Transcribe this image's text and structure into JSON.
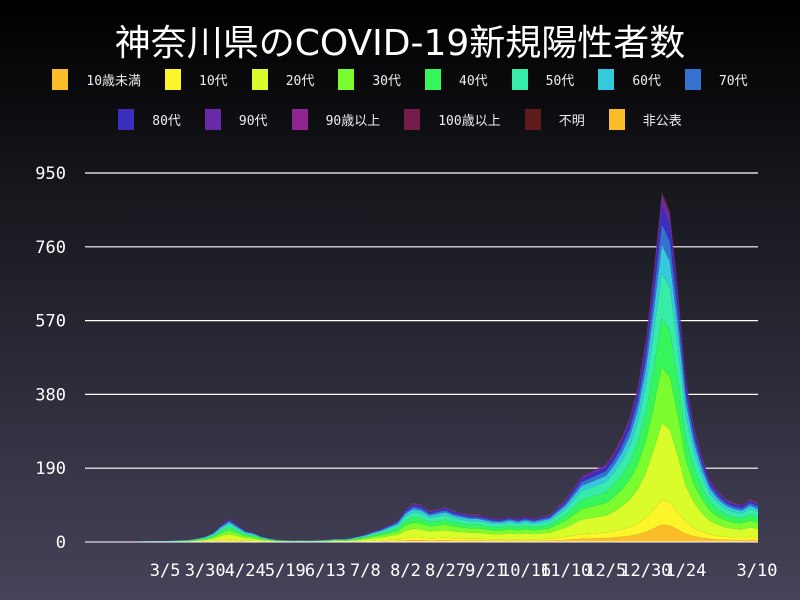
{
  "title": "神奈川県のCOVID-19新規陽性者数",
  "chart_data": {
    "type": "bar",
    "stacked": true,
    "title": "神奈川県のCOVID-19新規陽性者数",
    "xlabel": "",
    "ylabel": "",
    "ylim": [
      0,
      1000
    ],
    "yticks": [
      0,
      190,
      380,
      570,
      760,
      950
    ],
    "xticks": [
      "3/5",
      "3/30",
      "4/24",
      "5/19",
      "6/13",
      "7/8",
      "8/2",
      "8/27",
      "9/21",
      "10/16",
      "11/10",
      "12/5",
      "12/30",
      "1/24",
      "3/10"
    ],
    "xtick_dates": [
      "2020-03-05",
      "2020-03-30",
      "2020-04-24",
      "2020-05-19",
      "2020-06-13",
      "2020-07-08",
      "2020-08-02",
      "2020-08-27",
      "2020-09-21",
      "2020-10-16",
      "2020-11-10",
      "2020-12-05",
      "2020-12-30",
      "2021-01-24",
      "2021-03-10"
    ],
    "grid": "horizontal",
    "legend_placement": "top",
    "series": [
      {
        "name": "10歳未満",
        "color": "#fbbc2a",
        "share": 0.05
      },
      {
        "name": "10代",
        "color": "#fcf52a",
        "share": 0.07
      },
      {
        "name": "20代",
        "color": "#d9fc2a",
        "share": 0.22
      },
      {
        "name": "30代",
        "color": "#7afc2f",
        "share": 0.16
      },
      {
        "name": "40代",
        "color": "#35f55a",
        "share": 0.14
      },
      {
        "name": "50代",
        "color": "#37eba8",
        "share": 0.13
      },
      {
        "name": "60代",
        "color": "#35c9dc",
        "share": 0.08
      },
      {
        "name": "70代",
        "color": "#3572d0",
        "share": 0.06
      },
      {
        "name": "80代",
        "color": "#3a2fbd",
        "share": 0.05
      },
      {
        "name": "90代",
        "color": "#6a2aa8",
        "share": 0.03
      },
      {
        "name": "90歳以上",
        "color": "#8e2590",
        "share": 0.005
      },
      {
        "name": "100歳以上",
        "color": "#731e4a",
        "share": 0.002
      },
      {
        "name": "不明",
        "color": "#5f1c1e",
        "share": 0.002
      },
      {
        "name": "非公表",
        "color": "#fbbc2a",
        "share": 0.001
      }
    ],
    "dates": [
      "2020-01-15",
      "2020-01-20",
      "2020-01-25",
      "2020-01-30",
      "2020-02-04",
      "2020-02-09",
      "2020-02-14",
      "2020-02-19",
      "2020-02-24",
      "2020-02-29",
      "2020-03-05",
      "2020-03-10",
      "2020-03-15",
      "2020-03-20",
      "2020-03-25",
      "2020-03-30",
      "2020-04-04",
      "2020-04-09",
      "2020-04-14",
      "2020-04-19",
      "2020-04-24",
      "2020-04-29",
      "2020-05-04",
      "2020-05-09",
      "2020-05-14",
      "2020-05-19",
      "2020-05-24",
      "2020-05-29",
      "2020-06-03",
      "2020-06-08",
      "2020-06-13",
      "2020-06-18",
      "2020-06-23",
      "2020-06-28",
      "2020-07-03",
      "2020-07-08",
      "2020-07-13",
      "2020-07-18",
      "2020-07-23",
      "2020-07-28",
      "2020-08-02",
      "2020-08-07",
      "2020-08-12",
      "2020-08-17",
      "2020-08-22",
      "2020-08-27",
      "2020-09-01",
      "2020-09-06",
      "2020-09-11",
      "2020-09-16",
      "2020-09-21",
      "2020-09-26",
      "2020-10-01",
      "2020-10-06",
      "2020-10-11",
      "2020-10-16",
      "2020-10-21",
      "2020-10-26",
      "2020-10-31",
      "2020-11-05",
      "2020-11-10",
      "2020-11-15",
      "2020-11-20",
      "2020-11-25",
      "2020-11-30",
      "2020-12-05",
      "2020-12-10",
      "2020-12-15",
      "2020-12-20",
      "2020-12-25",
      "2020-12-30",
      "2021-01-04",
      "2021-01-09",
      "2021-01-14",
      "2021-01-19",
      "2021-01-24",
      "2021-01-29",
      "2021-02-03",
      "2021-02-08",
      "2021-02-13",
      "2021-02-18",
      "2021-02-23",
      "2021-02-28",
      "2021-03-05",
      "2021-03-10"
    ],
    "totals": [
      0,
      0,
      0,
      0,
      0,
      0,
      1,
      2,
      3,
      3,
      3,
      4,
      5,
      6,
      10,
      15,
      25,
      45,
      60,
      45,
      30,
      25,
      15,
      10,
      6,
      5,
      4,
      5,
      4,
      5,
      6,
      8,
      8,
      10,
      15,
      20,
      28,
      35,
      45,
      55,
      85,
      100,
      95,
      80,
      85,
      90,
      80,
      75,
      70,
      70,
      65,
      60,
      60,
      65,
      60,
      65,
      60,
      65,
      70,
      90,
      110,
      140,
      170,
      180,
      190,
      200,
      230,
      270,
      320,
      400,
      520,
      700,
      900,
      850,
      650,
      420,
      300,
      220,
      160,
      130,
      110,
      100,
      95,
      110,
      100
    ]
  }
}
